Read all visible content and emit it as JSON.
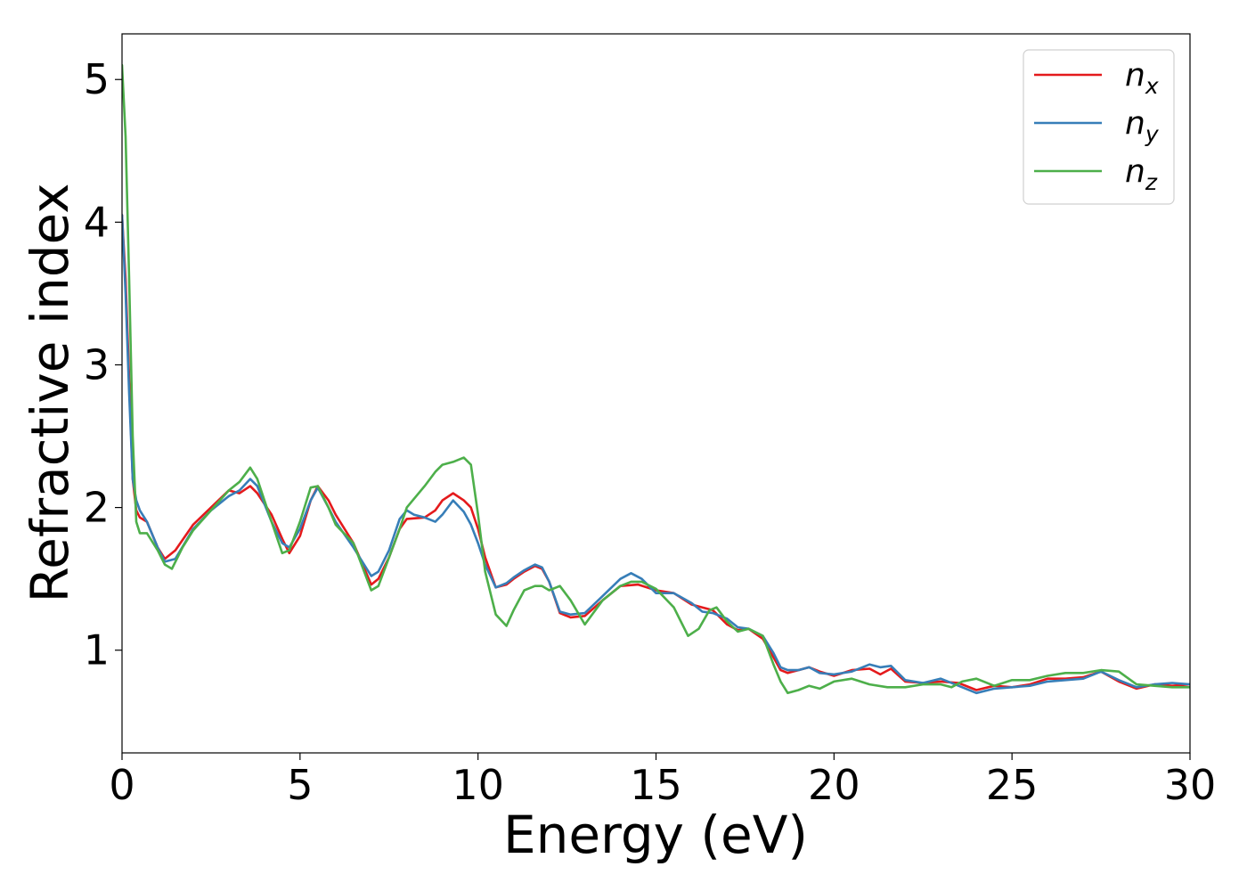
{
  "chart_data": {
    "type": "line",
    "title": "",
    "xlabel": "Energy (eV)",
    "ylabel": "Refractive index",
    "xlim": [
      0,
      30
    ],
    "ylim": [
      0.28,
      5.32
    ],
    "xticks": [
      0,
      5,
      10,
      15,
      20,
      25,
      30
    ],
    "xtick_labels": [
      "0",
      "5",
      "10",
      "15",
      "20",
      "25",
      "30"
    ],
    "yticks": [
      1,
      2,
      3,
      4,
      5
    ],
    "ytick_labels": [
      "1",
      "2",
      "3",
      "4",
      "5"
    ],
    "grid": false,
    "legend_position": "top-right",
    "series": [
      {
        "name": "n_x",
        "label_base": "n",
        "label_sub": "x",
        "color": "#e41a1c",
        "x": [
          0.0,
          0.1,
          0.2,
          0.3,
          0.4,
          0.5,
          0.7,
          1.0,
          1.2,
          1.5,
          2.0,
          2.5,
          3.0,
          3.3,
          3.6,
          3.8,
          4.2,
          4.5,
          4.7,
          5.0,
          5.3,
          5.5,
          5.8,
          6.0,
          6.5,
          7.0,
          7.2,
          7.5,
          7.8,
          8.0,
          8.5,
          8.8,
          9.0,
          9.3,
          9.6,
          9.8,
          10.0,
          10.2,
          10.5,
          10.8,
          11.0,
          11.3,
          11.6,
          11.8,
          12.0,
          12.3,
          12.6,
          13.0,
          13.5,
          14.0,
          14.5,
          15.0,
          15.5,
          16.0,
          16.3,
          16.6,
          17.0,
          17.3,
          17.6,
          18.0,
          18.3,
          18.5,
          18.7,
          19.0,
          19.3,
          19.6,
          20.0,
          20.5,
          21.0,
          21.3,
          21.6,
          22.0,
          22.5,
          23.0,
          23.5,
          24.0,
          24.5,
          25.0,
          25.5,
          26.0,
          26.5,
          27.0,
          27.5,
          28.0,
          28.5,
          29.0,
          29.5,
          30.0
        ],
        "values": [
          4.05,
          3.6,
          2.9,
          2.2,
          1.98,
          1.93,
          1.9,
          1.72,
          1.64,
          1.7,
          1.88,
          2.0,
          2.12,
          2.1,
          2.15,
          2.1,
          1.95,
          1.78,
          1.68,
          1.8,
          2.05,
          2.15,
          2.05,
          1.95,
          1.75,
          1.46,
          1.5,
          1.65,
          1.85,
          1.92,
          1.93,
          1.98,
          2.05,
          2.1,
          2.05,
          2.0,
          1.85,
          1.65,
          1.44,
          1.46,
          1.5,
          1.55,
          1.59,
          1.57,
          1.48,
          1.26,
          1.23,
          1.24,
          1.35,
          1.45,
          1.46,
          1.42,
          1.4,
          1.32,
          1.3,
          1.28,
          1.18,
          1.14,
          1.15,
          1.08,
          0.95,
          0.86,
          0.84,
          0.86,
          0.88,
          0.85,
          0.82,
          0.86,
          0.87,
          0.83,
          0.87,
          0.78,
          0.77,
          0.78,
          0.77,
          0.72,
          0.75,
          0.74,
          0.76,
          0.8,
          0.8,
          0.81,
          0.85,
          0.78,
          0.73,
          0.76,
          0.75,
          0.76
        ]
      },
      {
        "name": "n_y",
        "label_base": "n",
        "label_sub": "y",
        "color": "#377eb8",
        "x": [
          0.0,
          0.1,
          0.2,
          0.3,
          0.4,
          0.5,
          0.7,
          1.0,
          1.2,
          1.5,
          2.0,
          2.5,
          3.0,
          3.3,
          3.6,
          3.8,
          4.2,
          4.5,
          4.7,
          5.0,
          5.3,
          5.5,
          5.8,
          6.0,
          6.5,
          7.0,
          7.2,
          7.5,
          7.8,
          8.0,
          8.2,
          8.5,
          8.8,
          9.0,
          9.3,
          9.6,
          9.8,
          10.0,
          10.2,
          10.5,
          10.8,
          11.0,
          11.3,
          11.6,
          11.8,
          12.0,
          12.3,
          12.6,
          13.0,
          13.5,
          14.0,
          14.3,
          14.6,
          15.0,
          15.5,
          16.0,
          16.3,
          16.6,
          17.0,
          17.3,
          17.6,
          18.0,
          18.3,
          18.5,
          18.7,
          19.0,
          19.3,
          19.6,
          20.0,
          20.5,
          20.8,
          21.0,
          21.3,
          21.6,
          22.0,
          22.5,
          23.0,
          23.5,
          24.0,
          24.5,
          25.0,
          25.5,
          26.0,
          26.5,
          27.0,
          27.5,
          28.0,
          28.5,
          29.0,
          29.5,
          30.0
        ],
        "values": [
          4.05,
          3.5,
          2.8,
          2.2,
          2.05,
          1.98,
          1.9,
          1.72,
          1.62,
          1.64,
          1.85,
          1.98,
          2.08,
          2.12,
          2.2,
          2.15,
          1.9,
          1.75,
          1.72,
          1.85,
          2.05,
          2.14,
          2.0,
          1.9,
          1.72,
          1.52,
          1.55,
          1.7,
          1.92,
          1.98,
          1.95,
          1.93,
          1.9,
          1.95,
          2.05,
          1.97,
          1.88,
          1.75,
          1.6,
          1.44,
          1.47,
          1.51,
          1.56,
          1.6,
          1.58,
          1.48,
          1.27,
          1.25,
          1.26,
          1.38,
          1.5,
          1.54,
          1.5,
          1.4,
          1.4,
          1.33,
          1.27,
          1.26,
          1.22,
          1.16,
          1.15,
          1.1,
          0.98,
          0.88,
          0.86,
          0.86,
          0.88,
          0.84,
          0.83,
          0.85,
          0.88,
          0.9,
          0.88,
          0.89,
          0.79,
          0.77,
          0.8,
          0.75,
          0.7,
          0.73,
          0.74,
          0.75,
          0.78,
          0.79,
          0.8,
          0.85,
          0.79,
          0.74,
          0.76,
          0.77,
          0.76
        ]
      },
      {
        "name": "n_z",
        "label_base": "n",
        "label_sub": "z",
        "color": "#4daf4a",
        "x": [
          0.0,
          0.1,
          0.2,
          0.3,
          0.4,
          0.5,
          0.7,
          1.0,
          1.2,
          1.4,
          1.7,
          2.0,
          2.5,
          3.0,
          3.3,
          3.6,
          3.8,
          4.2,
          4.5,
          4.7,
          5.0,
          5.3,
          5.5,
          5.8,
          6.0,
          6.5,
          7.0,
          7.2,
          7.5,
          7.8,
          8.0,
          8.5,
          8.8,
          9.0,
          9.3,
          9.6,
          9.8,
          10.0,
          10.2,
          10.5,
          10.8,
          11.0,
          11.3,
          11.6,
          11.8,
          12.0,
          12.3,
          12.6,
          13.0,
          13.5,
          14.0,
          14.3,
          14.6,
          15.0,
          15.5,
          15.9,
          16.2,
          16.5,
          16.7,
          17.0,
          17.3,
          17.6,
          18.0,
          18.3,
          18.5,
          18.7,
          19.0,
          19.3,
          19.6,
          20.0,
          20.5,
          21.0,
          21.5,
          22.0,
          22.5,
          23.0,
          23.3,
          23.6,
          24.0,
          24.5,
          25.0,
          25.5,
          26.0,
          26.5,
          27.0,
          27.5,
          28.0,
          28.5,
          29.0,
          29.5,
          30.0
        ],
        "values": [
          5.1,
          4.6,
          3.6,
          2.5,
          1.9,
          1.82,
          1.82,
          1.7,
          1.6,
          1.57,
          1.72,
          1.84,
          1.98,
          2.12,
          2.18,
          2.28,
          2.2,
          1.9,
          1.68,
          1.7,
          1.9,
          2.14,
          2.15,
          2.0,
          1.88,
          1.75,
          1.42,
          1.45,
          1.65,
          1.85,
          2.0,
          2.15,
          2.25,
          2.3,
          2.32,
          2.35,
          2.3,
          1.95,
          1.55,
          1.25,
          1.17,
          1.28,
          1.42,
          1.45,
          1.45,
          1.42,
          1.45,
          1.35,
          1.18,
          1.35,
          1.45,
          1.48,
          1.48,
          1.43,
          1.3,
          1.1,
          1.15,
          1.28,
          1.3,
          1.2,
          1.13,
          1.15,
          1.1,
          0.9,
          0.78,
          0.7,
          0.72,
          0.75,
          0.73,
          0.78,
          0.8,
          0.76,
          0.74,
          0.74,
          0.76,
          0.76,
          0.74,
          0.78,
          0.8,
          0.75,
          0.79,
          0.79,
          0.82,
          0.84,
          0.84,
          0.86,
          0.85,
          0.76,
          0.75,
          0.74,
          0.74
        ]
      }
    ]
  }
}
